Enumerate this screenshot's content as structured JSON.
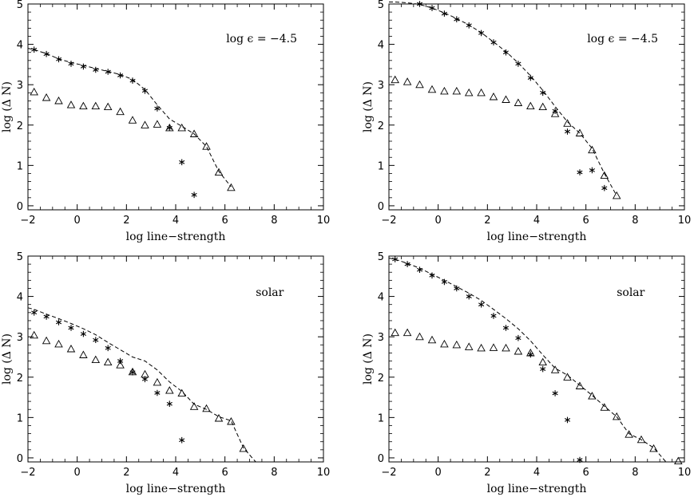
{
  "chart_data": [
    {
      "type": "scatter",
      "annotation": "log ϵ = −4.5",
      "xlabel": "log line−strength",
      "ylabel": "log (Δ N)",
      "xlim": [
        -2,
        10
      ],
      "ylim": [
        -0.1,
        5
      ],
      "xticks": [
        "−2",
        "0",
        "2",
        "4",
        "6",
        "8",
        "10"
      ],
      "yticks": [
        "0",
        "1",
        "2",
        "3",
        "4",
        "5"
      ],
      "series": [
        {
          "marker": "asterisk",
          "x": [
            -1.75,
            -1.25,
            -0.75,
            -0.25,
            0.25,
            0.75,
            1.25,
            1.75,
            2.25,
            2.75,
            3.25,
            3.75,
            4.25,
            4.75
          ],
          "y": [
            3.87,
            3.76,
            3.63,
            3.52,
            3.45,
            3.37,
            3.32,
            3.23,
            3.1,
            2.85,
            2.41,
            1.93,
            1.08,
            0.27
          ]
        },
        {
          "marker": "triangle",
          "x": [
            -1.75,
            -1.25,
            -0.75,
            -0.25,
            0.25,
            0.75,
            1.25,
            1.75,
            2.25,
            2.75,
            3.25,
            3.75,
            4.25,
            4.75,
            5.25,
            5.75,
            6.25
          ],
          "y": [
            2.82,
            2.68,
            2.6,
            2.5,
            2.47,
            2.47,
            2.45,
            2.33,
            2.12,
            2.0,
            2.02,
            1.93,
            1.93,
            1.78,
            1.47,
            0.83,
            0.45
          ]
        },
        {
          "marker": "dashed",
          "x": [
            -2,
            -1.75,
            -1.25,
            -0.75,
            -0.25,
            0.25,
            0.75,
            1.25,
            1.75,
            2.25,
            2.75,
            3.25,
            3.75,
            4.25,
            4.75,
            5.25,
            5.75,
            6.25
          ],
          "y": [
            3.9,
            3.87,
            3.77,
            3.64,
            3.55,
            3.48,
            3.4,
            3.33,
            3.25,
            3.13,
            2.88,
            2.5,
            2.15,
            1.97,
            1.78,
            1.47,
            0.85,
            0.47
          ]
        }
      ]
    },
    {
      "type": "scatter",
      "annotation": "log ϵ = −4.5",
      "xlabel": "log line−strength",
      "ylabel": "log (Δ N)",
      "xlim": [
        -2,
        10
      ],
      "ylim": [
        -0.1,
        5
      ],
      "xticks": [
        "−2",
        "0",
        "2",
        "4",
        "6",
        "8",
        "10"
      ],
      "yticks": [
        "0",
        "1",
        "2",
        "3",
        "4",
        "5"
      ],
      "series": [
        {
          "marker": "asterisk",
          "x": [
            -0.75,
            -0.25,
            0.25,
            0.75,
            1.25,
            1.75,
            2.25,
            2.75,
            3.25,
            3.75,
            4.25,
            4.75,
            5.25,
            5.75,
            6.25,
            6.75
          ],
          "y": [
            5.0,
            4.9,
            4.76,
            4.62,
            4.47,
            4.28,
            4.05,
            3.8,
            3.52,
            3.17,
            2.8,
            2.35,
            1.84,
            0.83,
            0.88,
            0.44
          ]
        },
        {
          "marker": "triangle",
          "x": [
            -1.75,
            -1.25,
            -0.75,
            -0.25,
            0.25,
            0.75,
            1.25,
            1.75,
            2.25,
            2.75,
            3.25,
            3.75,
            4.25,
            4.75,
            5.25,
            5.75,
            6.25,
            6.75,
            7.25
          ],
          "y": [
            3.12,
            3.07,
            3.0,
            2.88,
            2.84,
            2.84,
            2.8,
            2.8,
            2.7,
            2.63,
            2.55,
            2.47,
            2.45,
            2.28,
            2.04,
            1.8,
            1.38,
            0.75,
            0.25
          ]
        },
        {
          "marker": "dashed",
          "x": [
            -2,
            -1.75,
            -1.25,
            -0.75,
            -0.25,
            0.25,
            0.75,
            1.25,
            1.75,
            2.25,
            2.75,
            3.25,
            3.75,
            4.25,
            4.75,
            5.25,
            5.75,
            6.25,
            6.75,
            7.25
          ],
          "y": [
            5.05,
            5.05,
            5.03,
            4.99,
            4.9,
            4.78,
            4.64,
            4.48,
            4.29,
            4.06,
            3.82,
            3.54,
            3.22,
            2.86,
            2.46,
            2.08,
            1.8,
            1.42,
            0.8,
            0.25
          ]
        }
      ]
    },
    {
      "type": "scatter",
      "annotation": "solar",
      "xlabel": "log line−strength",
      "ylabel": "log (Δ N)",
      "xlim": [
        -2,
        10
      ],
      "ylim": [
        -0.1,
        5
      ],
      "xticks": [
        "−2",
        "0",
        "2",
        "4",
        "6",
        "8",
        "10"
      ],
      "yticks": [
        "0",
        "1",
        "2",
        "3",
        "4",
        "5"
      ],
      "series": [
        {
          "marker": "asterisk",
          "x": [
            -1.75,
            -1.25,
            -0.75,
            -0.25,
            0.25,
            0.75,
            1.25,
            1.75,
            2.25,
            2.75,
            3.25,
            3.75,
            4.25
          ],
          "y": [
            3.6,
            3.5,
            3.36,
            3.22,
            3.07,
            2.92,
            2.72,
            2.4,
            2.12,
            1.95,
            1.61,
            1.34,
            0.44
          ]
        },
        {
          "marker": "triangle",
          "x": [
            -1.75,
            -1.25,
            -0.75,
            -0.25,
            0.25,
            0.75,
            1.25,
            1.75,
            2.25,
            2.75,
            3.25,
            3.75,
            4.25,
            4.75,
            5.25,
            5.75,
            6.25,
            6.75
          ],
          "y": [
            3.04,
            2.9,
            2.82,
            2.7,
            2.55,
            2.43,
            2.37,
            2.3,
            2.13,
            2.07,
            1.87,
            1.67,
            1.6,
            1.27,
            1.22,
            0.98,
            0.9,
            0.23
          ]
        },
        {
          "marker": "dashed",
          "x": [
            -2,
            -1.75,
            -1.25,
            -0.75,
            -0.25,
            0.25,
            0.75,
            1.25,
            1.75,
            2.25,
            2.75,
            3.25,
            3.75,
            4.25,
            4.75,
            5.25,
            5.75,
            6.25,
            6.75,
            7.25
          ],
          "y": [
            3.72,
            3.68,
            3.56,
            3.45,
            3.33,
            3.2,
            3.05,
            2.86,
            2.68,
            2.5,
            2.4,
            2.18,
            1.88,
            1.65,
            1.33,
            1.2,
            1.02,
            0.92,
            0.25,
            -0.1
          ]
        }
      ]
    },
    {
      "type": "scatter",
      "annotation": "solar",
      "xlabel": "log line−strength",
      "ylabel": "log (Δ N)",
      "xlim": [
        -2,
        10
      ],
      "ylim": [
        -0.1,
        5
      ],
      "xticks": [
        "−2",
        "0",
        "2",
        "4",
        "6",
        "8",
        "10"
      ],
      "yticks": [
        "0",
        "1",
        "2",
        "3",
        "4",
        "5"
      ],
      "series": [
        {
          "marker": "asterisk",
          "x": [
            -1.75,
            -1.25,
            -0.75,
            -0.25,
            0.25,
            0.75,
            1.25,
            1.75,
            2.25,
            2.75,
            3.25,
            3.75,
            4.25,
            4.75,
            5.25,
            5.75
          ],
          "y": [
            4.92,
            4.8,
            4.66,
            4.52,
            4.36,
            4.2,
            4.0,
            3.8,
            3.52,
            3.22,
            2.97,
            2.56,
            2.2,
            1.6,
            0.94,
            -0.05
          ]
        },
        {
          "marker": "triangle",
          "x": [
            -1.75,
            -1.25,
            -0.75,
            -0.25,
            0.25,
            0.75,
            1.25,
            1.75,
            2.25,
            2.75,
            3.25,
            3.75,
            4.25,
            4.75,
            5.25,
            5.75,
            6.25,
            6.75,
            7.25,
            7.75,
            8.25,
            8.75,
            9.75
          ],
          "y": [
            3.1,
            3.1,
            3.0,
            2.92,
            2.82,
            2.8,
            2.75,
            2.72,
            2.73,
            2.72,
            2.64,
            2.6,
            2.37,
            2.18,
            2.0,
            1.78,
            1.53,
            1.25,
            1.02,
            0.58,
            0.45,
            0.23,
            -0.08
          ]
        },
        {
          "marker": "dashed",
          "x": [
            -2,
            -1.75,
            -1.25,
            -0.75,
            -0.25,
            0.25,
            0.75,
            1.25,
            1.75,
            2.25,
            2.75,
            3.25,
            3.75,
            4.25,
            4.75,
            5.25,
            5.75,
            6.25,
            6.75,
            7.25,
            7.75,
            8.25,
            8.75,
            9.25
          ],
          "y": [
            4.95,
            4.92,
            4.82,
            4.7,
            4.55,
            4.4,
            4.24,
            4.08,
            3.9,
            3.68,
            3.45,
            3.2,
            2.9,
            2.55,
            2.22,
            2.05,
            1.8,
            1.55,
            1.28,
            1.02,
            0.6,
            0.45,
            0.25,
            -0.1
          ]
        }
      ]
    }
  ]
}
